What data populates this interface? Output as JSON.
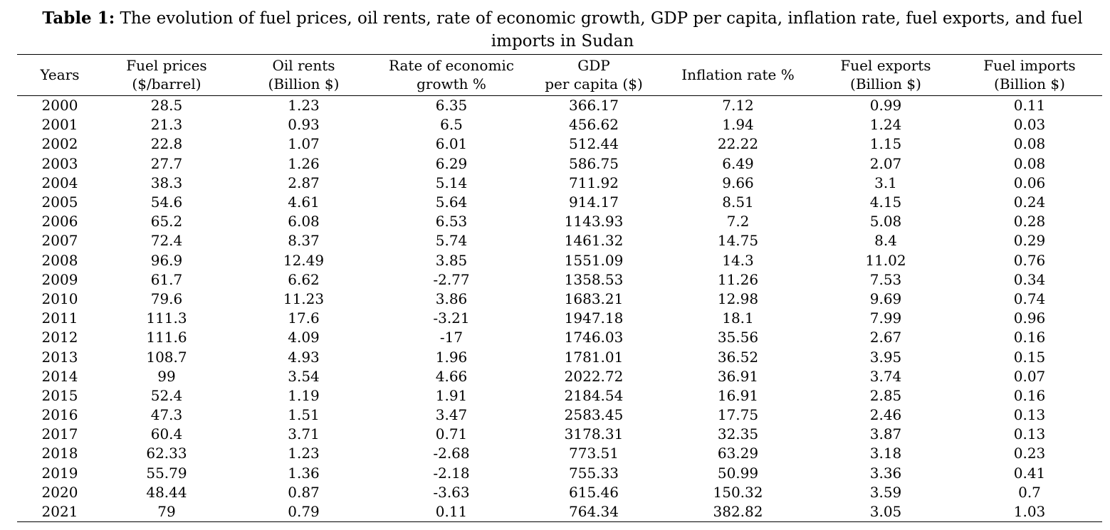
{
  "caption": {
    "label": "Table 1:",
    "text": " The evolution of fuel prices, oil rents, rate of economic growth, GDP per capita, inflation rate, fuel exports, and fuel imports in Sudan"
  },
  "table": {
    "headers": [
      [
        "Years"
      ],
      [
        "Fuel prices",
        "($/barrel)"
      ],
      [
        "Oil rents",
        "(Billion $)"
      ],
      [
        "Rate of economic",
        "growth %"
      ],
      [
        "GDP",
        "per capita ($)"
      ],
      [
        "Inflation rate %"
      ],
      [
        "Fuel exports",
        "(Billion $)"
      ],
      [
        "Fuel imports",
        "(Billion $)"
      ]
    ],
    "rows": [
      [
        "2000",
        "28.5",
        "1.23",
        "6.35",
        "366.17",
        "7.12",
        "0.99",
        "0.11"
      ],
      [
        "2001",
        "21.3",
        "0.93",
        "6.5",
        "456.62",
        "1.94",
        "1.24",
        "0.03"
      ],
      [
        "2002",
        "22.8",
        "1.07",
        "6.01",
        "512.44",
        "22.22",
        "1.15",
        "0.08"
      ],
      [
        "2003",
        "27.7",
        "1.26",
        "6.29",
        "586.75",
        "6.49",
        "2.07",
        "0.08"
      ],
      [
        "2004",
        "38.3",
        "2.87",
        "5.14",
        "711.92",
        "9.66",
        "3.1",
        "0.06"
      ],
      [
        "2005",
        "54.6",
        "4.61",
        "5.64",
        "914.17",
        "8.51",
        "4.15",
        "0.24"
      ],
      [
        "2006",
        "65.2",
        "6.08",
        "6.53",
        "1143.93",
        "7.2",
        "5.08",
        "0.28"
      ],
      [
        "2007",
        "72.4",
        "8.37",
        "5.74",
        "1461.32",
        "14.75",
        "8.4",
        "0.29"
      ],
      [
        "2008",
        "96.9",
        "12.49",
        "3.85",
        "1551.09",
        "14.3",
        "11.02",
        "0.76"
      ],
      [
        "2009",
        "61.7",
        "6.62",
        "-2.77",
        "1358.53",
        "11.26",
        "7.53",
        "0.34"
      ],
      [
        "2010",
        "79.6",
        "11.23",
        "3.86",
        "1683.21",
        "12.98",
        "9.69",
        "0.74"
      ],
      [
        "2011",
        "111.3",
        "17.6",
        "-3.21",
        "1947.18",
        "18.1",
        "7.99",
        "0.96"
      ],
      [
        "2012",
        "111.6",
        "4.09",
        "-17",
        "1746.03",
        "35.56",
        "2.67",
        "0.16"
      ],
      [
        "2013",
        "108.7",
        "4.93",
        "1.96",
        "1781.01",
        "36.52",
        "3.95",
        "0.15"
      ],
      [
        "2014",
        "99",
        "3.54",
        "4.66",
        "2022.72",
        "36.91",
        "3.74",
        "0.07"
      ],
      [
        "2015",
        "52.4",
        "1.19",
        "1.91",
        "2184.54",
        "16.91",
        "2.85",
        "0.16"
      ],
      [
        "2016",
        "47.3",
        "1.51",
        "3.47",
        "2583.45",
        "17.75",
        "2.46",
        "0.13"
      ],
      [
        "2017",
        "60.4",
        "3.71",
        "0.71",
        "3178.31",
        "32.35",
        "3.87",
        "0.13"
      ],
      [
        "2018",
        "62.33",
        "1.23",
        "-2.68",
        "773.51",
        "63.29",
        "3.18",
        "0.23"
      ],
      [
        "2019",
        "55.79",
        "1.36",
        "-2.18",
        "755.33",
        "50.99",
        "3.36",
        "0.41"
      ],
      [
        "2020",
        "48.44",
        "0.87",
        "-3.63",
        "615.46",
        "150.32",
        "3.59",
        "0.7"
      ],
      [
        "2021",
        "79",
        "0.79",
        "0.11",
        "764.34",
        "382.82",
        "3.05",
        "1.03"
      ]
    ]
  }
}
